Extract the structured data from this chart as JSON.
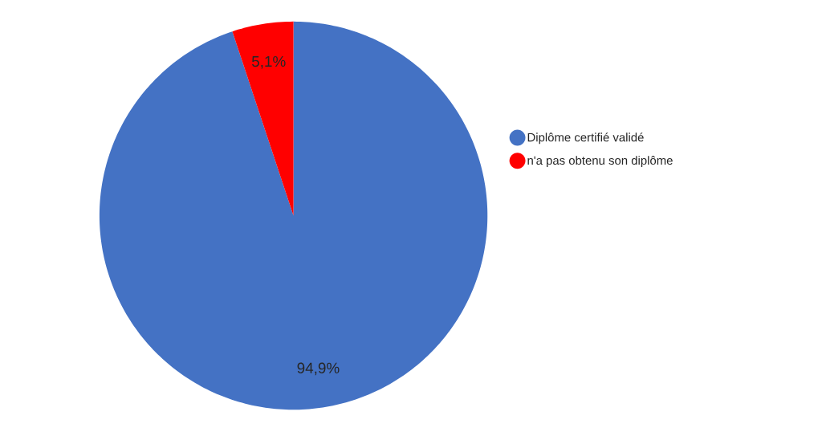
{
  "chart_data": {
    "type": "pie",
    "categories": [
      "Diplôme certifié validé",
      "n'a pas obtenu son diplôme"
    ],
    "values": [
      94.9,
      5.1
    ],
    "colors": [
      "#4472c4",
      "#ff0000"
    ],
    "value_labels": [
      "94,9%",
      "5,1%"
    ],
    "legend": "right"
  }
}
